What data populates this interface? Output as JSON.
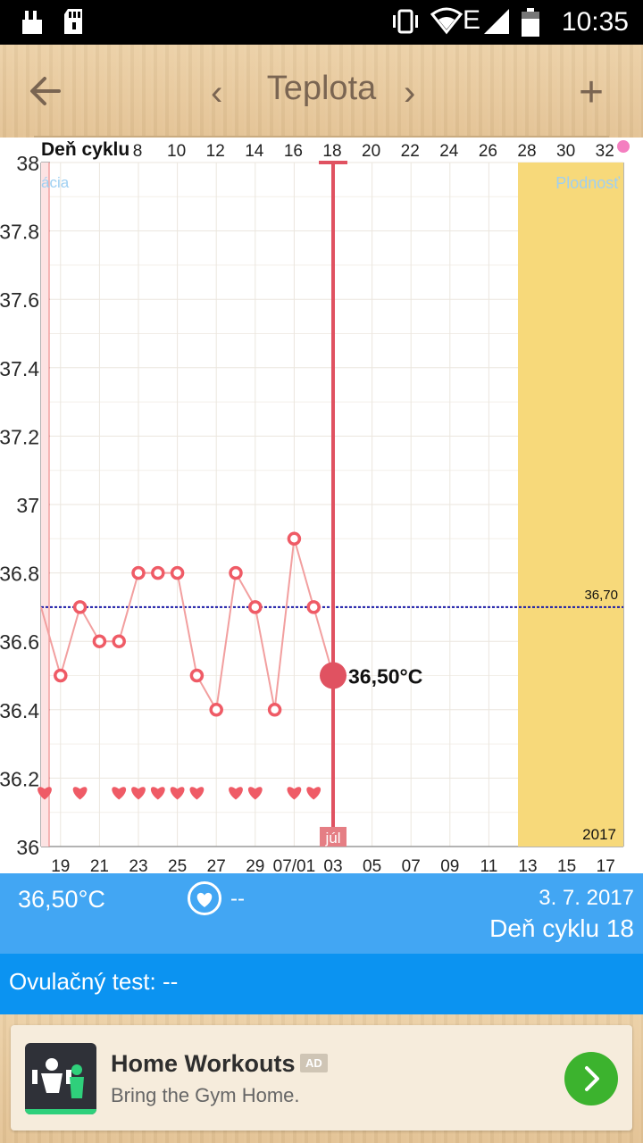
{
  "status_bar": {
    "time": "10:35"
  },
  "app_bar": {
    "title": "Teplota",
    "prev_label": "‹",
    "next_label": "›",
    "add_label": "+"
  },
  "chart_data": {
    "type": "line",
    "top_axis_label": "Deň cyklu",
    "top_ticks": [
      "8",
      "10",
      "12",
      "14",
      "16",
      "18",
      "20",
      "22",
      "24",
      "26",
      "28",
      "30",
      "32"
    ],
    "bottom_ticks": [
      "19",
      "21",
      "23",
      "25",
      "27",
      "29",
      "07/01",
      "03",
      "05",
      "07",
      "09",
      "11",
      "13",
      "15",
      "17"
    ],
    "y_ticks": [
      "38",
      "37.8",
      "37.6",
      "37.4",
      "37.2",
      "37",
      "36.8",
      "36.6",
      "36.4",
      "36.2",
      "36"
    ],
    "ylim": [
      36,
      38
    ],
    "series": [
      {
        "x": [
          "19",
          "20",
          "21",
          "22",
          "23",
          "24",
          "25",
          "26",
          "27",
          "28",
          "29",
          "30",
          "07/01",
          "02",
          "03"
        ],
        "values": [
          36.5,
          36.7,
          36.6,
          36.6,
          36.8,
          36.8,
          36.8,
          36.5,
          36.4,
          36.8,
          36.7,
          36.4,
          36.9,
          36.7,
          36.5
        ]
      }
    ],
    "heart_days": [
      "18",
      "20",
      "22",
      "23",
      "24",
      "25",
      "26",
      "28",
      "29",
      "07/01",
      "02"
    ],
    "reference_line": {
      "value": "36,70"
    },
    "selected": {
      "day": "03",
      "value": "36,50°C"
    },
    "month_label": "júl",
    "year_label": "2017",
    "band_left_label": "ácia",
    "band_right_label": "Plodnosť",
    "colors": {
      "line": "#f29f9f",
      "marker": "#ef5b66",
      "selected": "#e05261",
      "fertile": "#f7d97a",
      "ref": "#1a1aa8"
    }
  },
  "info": {
    "temperature": "36,50°C",
    "intercourse": "--",
    "date": "3. 7. 2017",
    "cycle_day": "Deň cyklu 18"
  },
  "ovulation_test": {
    "label": "Ovulačný test: --"
  },
  "ad": {
    "app_name": "Home Workouts",
    "badge": "AD",
    "tagline": "Bring the Gym Home."
  }
}
